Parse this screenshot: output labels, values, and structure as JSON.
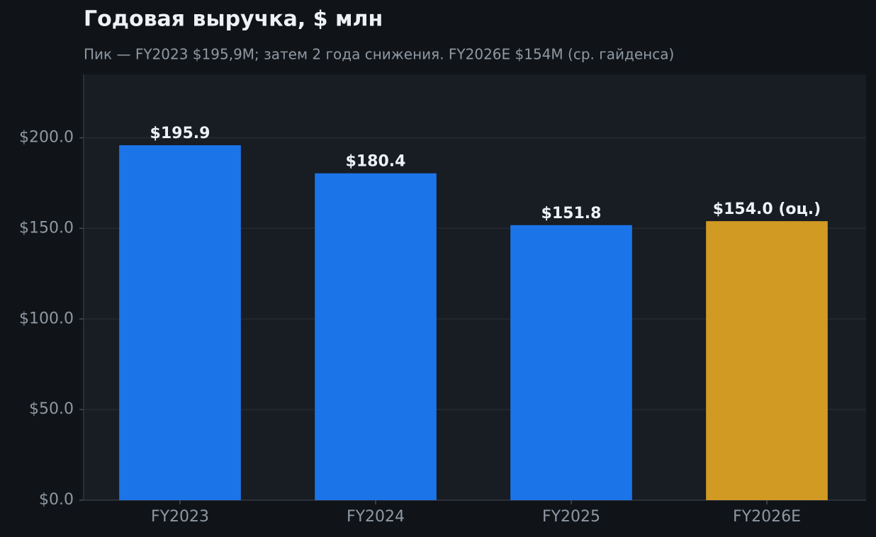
{
  "chart_data": {
    "type": "bar",
    "title": "Годовая выручка, $ млн",
    "subtitle": "Пик — FY2023 $195,9M; затем 2 года снижения. FY2026E $154M (ср. гайденса)",
    "categories": [
      "FY2023",
      "FY2024",
      "FY2025",
      "FY2026E"
    ],
    "values": [
      195.9,
      180.4,
      151.8,
      154.0
    ],
    "value_labels": [
      "$195.9",
      "$180.4",
      "$151.8",
      "$154.0 (оц.)"
    ],
    "colors": [
      "#1c74e9",
      "#1c74e9",
      "#1c74e9",
      "#d19a22"
    ],
    "ylim": [
      0,
      235
    ],
    "yticks": [
      {
        "value": 0,
        "label": "$0.0"
      },
      {
        "value": 50,
        "label": "$50.0"
      },
      {
        "value": 100,
        "label": "$100.0"
      },
      {
        "value": 150,
        "label": "$150.0"
      },
      {
        "value": 200,
        "label": "$200.0"
      }
    ],
    "grid": true
  }
}
